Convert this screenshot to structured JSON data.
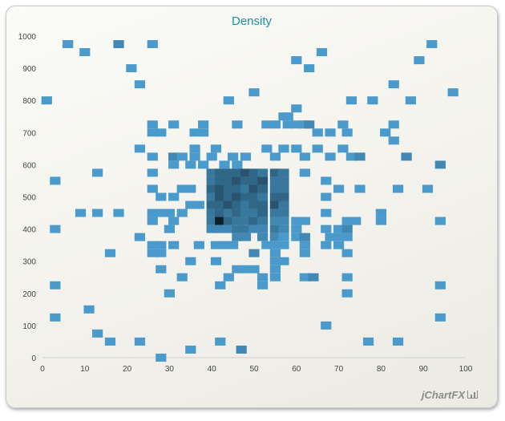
{
  "chart_data": {
    "type": "heatmap",
    "title": "Density",
    "xlim": [
      0,
      100
    ],
    "ylim": [
      0,
      1000
    ],
    "x_ticks": [
      0,
      10,
      20,
      30,
      40,
      50,
      60,
      70,
      80,
      90,
      100
    ],
    "y_ticks": [
      0,
      100,
      200,
      300,
      400,
      500,
      600,
      700,
      800,
      900,
      1000
    ],
    "cell_size": {
      "x": 2.5,
      "y": 25
    },
    "color_scale": [
      "#4a9bcb",
      "#0e1f2b"
    ],
    "points": [
      [
        6,
        975,
        1
      ],
      [
        10,
        950,
        1
      ],
      [
        18,
        975,
        2
      ],
      [
        26,
        975,
        1
      ],
      [
        92,
        975,
        1
      ],
      [
        21,
        900,
        1
      ],
      [
        60,
        925,
        1
      ],
      [
        63,
        900,
        1
      ],
      [
        66,
        950,
        1
      ],
      [
        89,
        925,
        1
      ],
      [
        1,
        800,
        1
      ],
      [
        23,
        850,
        1
      ],
      [
        44,
        800,
        1
      ],
      [
        50,
        825,
        1
      ],
      [
        73,
        800,
        1
      ],
      [
        78,
        800,
        1
      ],
      [
        83,
        850,
        1
      ],
      [
        87,
        800,
        1
      ],
      [
        97,
        825,
        1
      ],
      [
        26,
        725,
        1
      ],
      [
        26,
        700,
        1
      ],
      [
        28,
        700,
        1
      ],
      [
        31,
        725,
        1
      ],
      [
        36,
        700,
        1
      ],
      [
        38,
        700,
        1
      ],
      [
        38,
        725,
        1
      ],
      [
        46,
        725,
        1
      ],
      [
        53,
        725,
        1
      ],
      [
        55,
        725,
        1
      ],
      [
        57,
        750,
        1
      ],
      [
        58,
        750,
        1
      ],
      [
        58,
        725,
        1
      ],
      [
        60,
        775,
        1
      ],
      [
        60,
        725,
        1
      ],
      [
        62,
        725,
        1
      ],
      [
        63,
        725,
        2
      ],
      [
        65,
        700,
        1
      ],
      [
        68,
        700,
        1
      ],
      [
        71,
        725,
        1
      ],
      [
        72,
        700,
        1
      ],
      [
        81,
        700,
        1
      ],
      [
        83,
        725,
        1
      ],
      [
        23,
        650,
        1
      ],
      [
        26,
        625,
        1
      ],
      [
        31,
        625,
        2
      ],
      [
        31,
        600,
        1
      ],
      [
        33,
        625,
        1
      ],
      [
        35,
        600,
        1
      ],
      [
        36,
        650,
        1
      ],
      [
        36,
        625,
        1
      ],
      [
        38,
        600,
        1
      ],
      [
        40,
        625,
        1
      ],
      [
        41,
        650,
        1
      ],
      [
        43,
        600,
        1
      ],
      [
        45,
        625,
        1
      ],
      [
        46,
        600,
        1
      ],
      [
        48,
        625,
        1
      ],
      [
        53,
        650,
        1
      ],
      [
        55,
        625,
        1
      ],
      [
        57,
        650,
        1
      ],
      [
        60,
        650,
        1
      ],
      [
        62,
        625,
        1
      ],
      [
        65,
        650,
        1
      ],
      [
        68,
        625,
        1
      ],
      [
        71,
        650,
        1
      ],
      [
        73,
        625,
        1
      ],
      [
        75,
        625,
        2
      ],
      [
        83,
        675,
        1
      ],
      [
        86,
        625,
        2
      ],
      [
        94,
        600,
        2
      ],
      [
        3,
        550,
        1
      ],
      [
        13,
        575,
        1
      ],
      [
        26,
        575,
        1
      ],
      [
        26,
        525,
        1
      ],
      [
        28,
        500,
        1
      ],
      [
        31,
        500,
        1
      ],
      [
        33,
        525,
        1
      ],
      [
        35,
        525,
        1
      ],
      [
        35,
        475,
        1
      ],
      [
        37,
        475,
        1
      ],
      [
        40,
        575,
        3
      ],
      [
        42,
        575,
        4
      ],
      [
        44,
        575,
        4
      ],
      [
        46,
        575,
        4
      ],
      [
        48,
        575,
        5
      ],
      [
        50,
        575,
        4
      ],
      [
        52,
        575,
        3
      ],
      [
        55,
        575,
        4
      ],
      [
        57,
        575,
        3
      ],
      [
        40,
        550,
        3
      ],
      [
        42,
        550,
        4
      ],
      [
        44,
        550,
        4
      ],
      [
        46,
        550,
        5
      ],
      [
        48,
        550,
        4
      ],
      [
        50,
        550,
        4
      ],
      [
        52,
        550,
        5
      ],
      [
        55,
        550,
        3
      ],
      [
        57,
        550,
        3
      ],
      [
        40,
        525,
        4
      ],
      [
        42,
        525,
        5
      ],
      [
        44,
        525,
        4
      ],
      [
        46,
        525,
        4
      ],
      [
        48,
        525,
        3
      ],
      [
        50,
        525,
        5
      ],
      [
        52,
        525,
        4
      ],
      [
        55,
        525,
        3
      ],
      [
        57,
        525,
        3
      ],
      [
        40,
        500,
        3
      ],
      [
        42,
        500,
        5
      ],
      [
        44,
        500,
        4
      ],
      [
        46,
        500,
        5
      ],
      [
        48,
        500,
        4
      ],
      [
        50,
        500,
        4
      ],
      [
        52,
        500,
        3
      ],
      [
        55,
        500,
        4
      ],
      [
        57,
        500,
        4
      ],
      [
        40,
        475,
        4
      ],
      [
        42,
        475,
        4
      ],
      [
        44,
        475,
        5
      ],
      [
        46,
        475,
        4
      ],
      [
        48,
        475,
        3
      ],
      [
        50,
        475,
        4
      ],
      [
        52,
        475,
        4
      ],
      [
        55,
        475,
        5
      ],
      [
        57,
        475,
        3
      ],
      [
        40,
        450,
        3
      ],
      [
        42,
        450,
        4
      ],
      [
        44,
        450,
        3
      ],
      [
        46,
        450,
        4
      ],
      [
        48,
        450,
        3
      ],
      [
        50,
        450,
        3
      ],
      [
        52,
        450,
        4
      ],
      [
        55,
        450,
        3
      ],
      [
        57,
        450,
        3
      ],
      [
        62,
        575,
        1
      ],
      [
        67,
        550,
        1
      ],
      [
        67,
        500,
        1
      ],
      [
        70,
        525,
        1
      ],
      [
        75,
        525,
        1
      ],
      [
        84,
        525,
        1
      ],
      [
        91,
        525,
        1
      ],
      [
        9,
        450,
        1
      ],
      [
        13,
        450,
        1
      ],
      [
        18,
        450,
        1
      ],
      [
        26,
        450,
        1
      ],
      [
        26,
        425,
        1
      ],
      [
        28,
        450,
        1
      ],
      [
        30,
        450,
        1
      ],
      [
        31,
        425,
        1
      ],
      [
        33,
        450,
        1
      ],
      [
        40,
        425,
        3
      ],
      [
        42,
        425,
        8
      ],
      [
        44,
        425,
        4
      ],
      [
        46,
        425,
        3
      ],
      [
        48,
        425,
        3
      ],
      [
        50,
        425,
        4
      ],
      [
        52,
        425,
        3
      ],
      [
        55,
        425,
        2
      ],
      [
        57,
        425,
        2
      ],
      [
        60,
        425,
        1
      ],
      [
        62,
        425,
        1
      ],
      [
        67,
        450,
        1
      ],
      [
        72,
        425,
        1
      ],
      [
        74,
        425,
        1
      ],
      [
        80,
        450,
        1
      ],
      [
        80,
        425,
        1
      ],
      [
        94,
        425,
        1
      ],
      [
        3,
        400,
        1
      ],
      [
        23,
        375,
        1
      ],
      [
        30,
        400,
        1
      ],
      [
        40,
        400,
        2
      ],
      [
        42,
        400,
        2
      ],
      [
        44,
        400,
        2
      ],
      [
        46,
        400,
        3
      ],
      [
        48,
        400,
        3
      ],
      [
        50,
        400,
        2
      ],
      [
        52,
        400,
        2
      ],
      [
        55,
        400,
        3
      ],
      [
        57,
        400,
        2
      ],
      [
        60,
        400,
        1
      ],
      [
        67,
        400,
        1
      ],
      [
        70,
        400,
        1
      ],
      [
        72,
        400,
        2
      ],
      [
        46,
        375,
        2
      ],
      [
        48,
        375,
        2
      ],
      [
        52,
        375,
        2
      ],
      [
        55,
        375,
        2
      ],
      [
        57,
        375,
        1
      ],
      [
        60,
        375,
        1
      ],
      [
        62,
        375,
        2
      ],
      [
        68,
        375,
        1
      ],
      [
        70,
        375,
        1
      ],
      [
        72,
        375,
        1
      ],
      [
        16,
        325,
        1
      ],
      [
        26,
        350,
        1
      ],
      [
        26,
        325,
        1
      ],
      [
        28,
        350,
        1
      ],
      [
        28,
        325,
        1
      ],
      [
        31,
        350,
        1
      ],
      [
        37,
        350,
        1
      ],
      [
        41,
        350,
        1
      ],
      [
        43,
        350,
        1
      ],
      [
        45,
        350,
        1
      ],
      [
        50,
        325,
        2
      ],
      [
        53,
        350,
        1
      ],
      [
        55,
        350,
        1
      ],
      [
        55,
        325,
        1
      ],
      [
        57,
        350,
        1
      ],
      [
        62,
        350,
        1
      ],
      [
        62,
        325,
        1
      ],
      [
        67,
        350,
        1
      ],
      [
        70,
        350,
        1
      ],
      [
        72,
        325,
        1
      ],
      [
        28,
        275,
        1
      ],
      [
        35,
        300,
        1
      ],
      [
        41,
        300,
        1
      ],
      [
        46,
        275,
        1
      ],
      [
        48,
        275,
        1
      ],
      [
        50,
        275,
        1
      ],
      [
        55,
        300,
        1
      ],
      [
        55,
        275,
        1
      ],
      [
        57,
        300,
        1
      ],
      [
        3,
        225,
        1
      ],
      [
        30,
        200,
        1
      ],
      [
        33,
        250,
        1
      ],
      [
        42,
        225,
        1
      ],
      [
        44,
        250,
        1
      ],
      [
        52,
        250,
        1
      ],
      [
        52,
        225,
        1
      ],
      [
        55,
        250,
        1
      ],
      [
        62,
        250,
        1
      ],
      [
        64,
        250,
        2
      ],
      [
        72,
        250,
        1
      ],
      [
        72,
        200,
        1
      ],
      [
        94,
        225,
        1
      ],
      [
        3,
        125,
        1
      ],
      [
        11,
        150,
        1
      ],
      [
        67,
        100,
        1
      ],
      [
        94,
        125,
        1
      ],
      [
        13,
        75,
        1
      ],
      [
        16,
        50,
        1
      ],
      [
        23,
        50,
        1
      ],
      [
        35,
        25,
        1
      ],
      [
        42,
        50,
        1
      ],
      [
        47,
        25,
        2
      ],
      [
        77,
        50,
        1
      ],
      [
        84,
        50,
        1
      ],
      [
        28,
        0,
        1
      ]
    ]
  },
  "branding": {
    "text": "jChartFX"
  }
}
